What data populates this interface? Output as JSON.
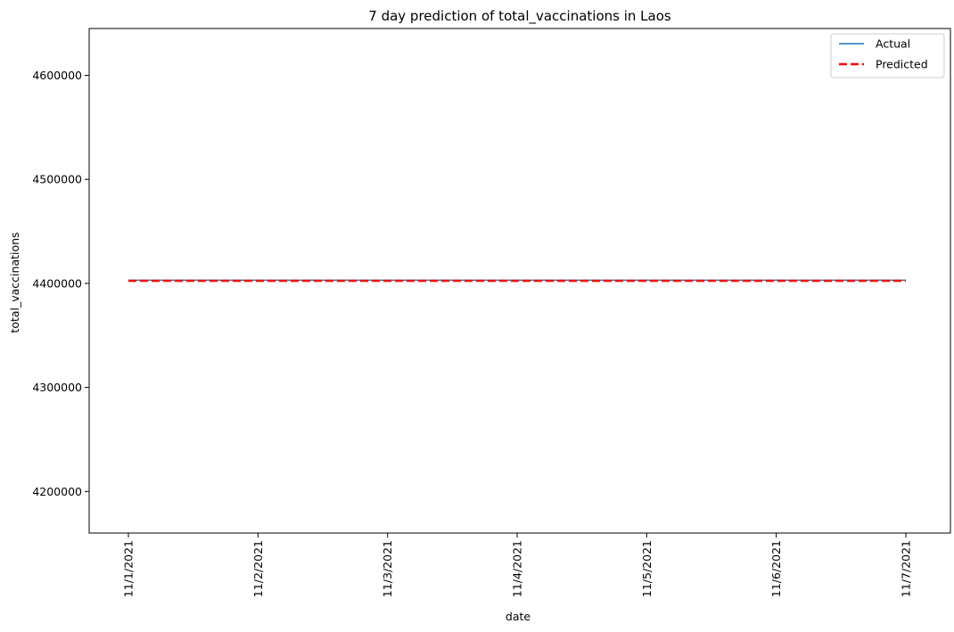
{
  "chart_data": {
    "type": "line",
    "title": "7 day prediction of total_vaccinations in Laos",
    "xlabel": "date",
    "ylabel": "total_vaccinations",
    "x": [
      "11/1/2021",
      "11/2/2021",
      "11/3/2021",
      "11/4/2021",
      "11/5/2021",
      "11/6/2021",
      "11/7/2021"
    ],
    "yticks": [
      4200000,
      4300000,
      4400000,
      4500000,
      4600000
    ],
    "ylim": [
      4160000,
      4645000
    ],
    "grid": false,
    "legend_position": "top-right",
    "series": [
      {
        "name": "Actual",
        "values": [
          4403000,
          4403000,
          4403000,
          4403000,
          4403000,
          4403000,
          4403000
        ],
        "color": "#1f77b4",
        "style": "solid"
      },
      {
        "name": "Predicted",
        "values": [
          4402500,
          4402500,
          4402500,
          4402500,
          4402500,
          4402500,
          4402500
        ],
        "color": "#ff0000",
        "style": "dashed"
      }
    ]
  }
}
